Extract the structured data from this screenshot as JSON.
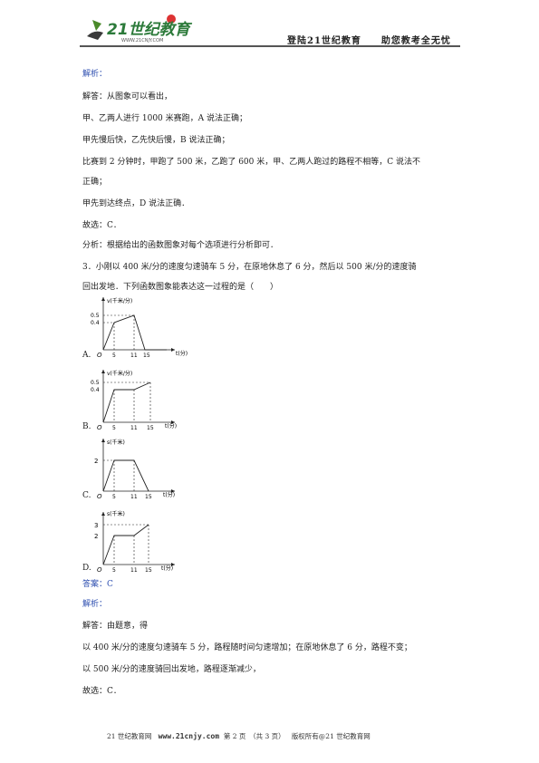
{
  "header": {
    "logo_text": "21世纪教育",
    "logo_url_text": "WWW.21CNJY.COM",
    "slogan_1": "登陆21世纪教育",
    "slogan_2": "助您教考全无忧"
  },
  "body": {
    "analysis_label_1": "解析：",
    "line_1": "解答：从图象可以看出，",
    "line_2": "甲、乙两人进行 1000 米赛跑，A 说法正确；",
    "line_3": "甲先慢后快，乙先快后慢，B 说法正确；",
    "line_4a": "比赛到 2 分钟时，甲跑了 500 米，乙跑了 600 米，甲、乙两人跑过的路程不相等，C 说法不",
    "line_4b": "正确；",
    "line_5": "甲先到达终点，D 说法正确．",
    "choice_1": "故选：C．",
    "summary_1": "分析：根据给出的函数图象对每个选项进行分析即可．",
    "question_3a": "3．小刚以 400 米/分的速度匀速骑车 5 分，在原地休息了 6 分，然后以 500 米/分的速度骑",
    "question_3b": "回出发地．下列函数图象能表达这一过程的是（　　）",
    "answer": "答案：C",
    "analysis_label_2": "解析：",
    "line_6": "解答：由题意，得",
    "line_7": "以 400 米/分的速度匀速骑车 5 分，路程随时间匀速增加；在原地休息了 6 分，路程不变；",
    "line_8": "以 500 米/分的速度骑回出发地，路程逐渐减少，",
    "choice_2": "故选：C．"
  },
  "options": [
    {
      "letter": "A.",
      "ylabel": "v(千米/分)",
      "y_ticks": [
        "0.5",
        "0.4"
      ],
      "x_ticks": [
        "5",
        "11",
        "15"
      ],
      "xlabel": "t(分)",
      "origin": "O"
    },
    {
      "letter": "B.",
      "ylabel": "v(千米/分)",
      "y_ticks": [
        "0.5",
        "0.4"
      ],
      "x_ticks": [
        "5",
        "11",
        "15"
      ],
      "xlabel": "t(分)",
      "origin": "O"
    },
    {
      "letter": "C.",
      "ylabel": "s(千米)",
      "y_ticks": [
        "2"
      ],
      "x_ticks": [
        "5",
        "11",
        "15"
      ],
      "xlabel": "t(分)",
      "origin": "O"
    },
    {
      "letter": "D.",
      "ylabel": "s(千米)",
      "y_ticks": [
        "3",
        "2"
      ],
      "x_ticks": [
        "5",
        "11",
        "15"
      ],
      "xlabel": "t(分)",
      "origin": "O"
    }
  ],
  "footer": {
    "site_name": "21 世纪教育网",
    "url": "www.21cnjy.com",
    "page": "第 2 页　（共 3 页）",
    "copyright": "版权所有@21 世纪教育网"
  }
}
